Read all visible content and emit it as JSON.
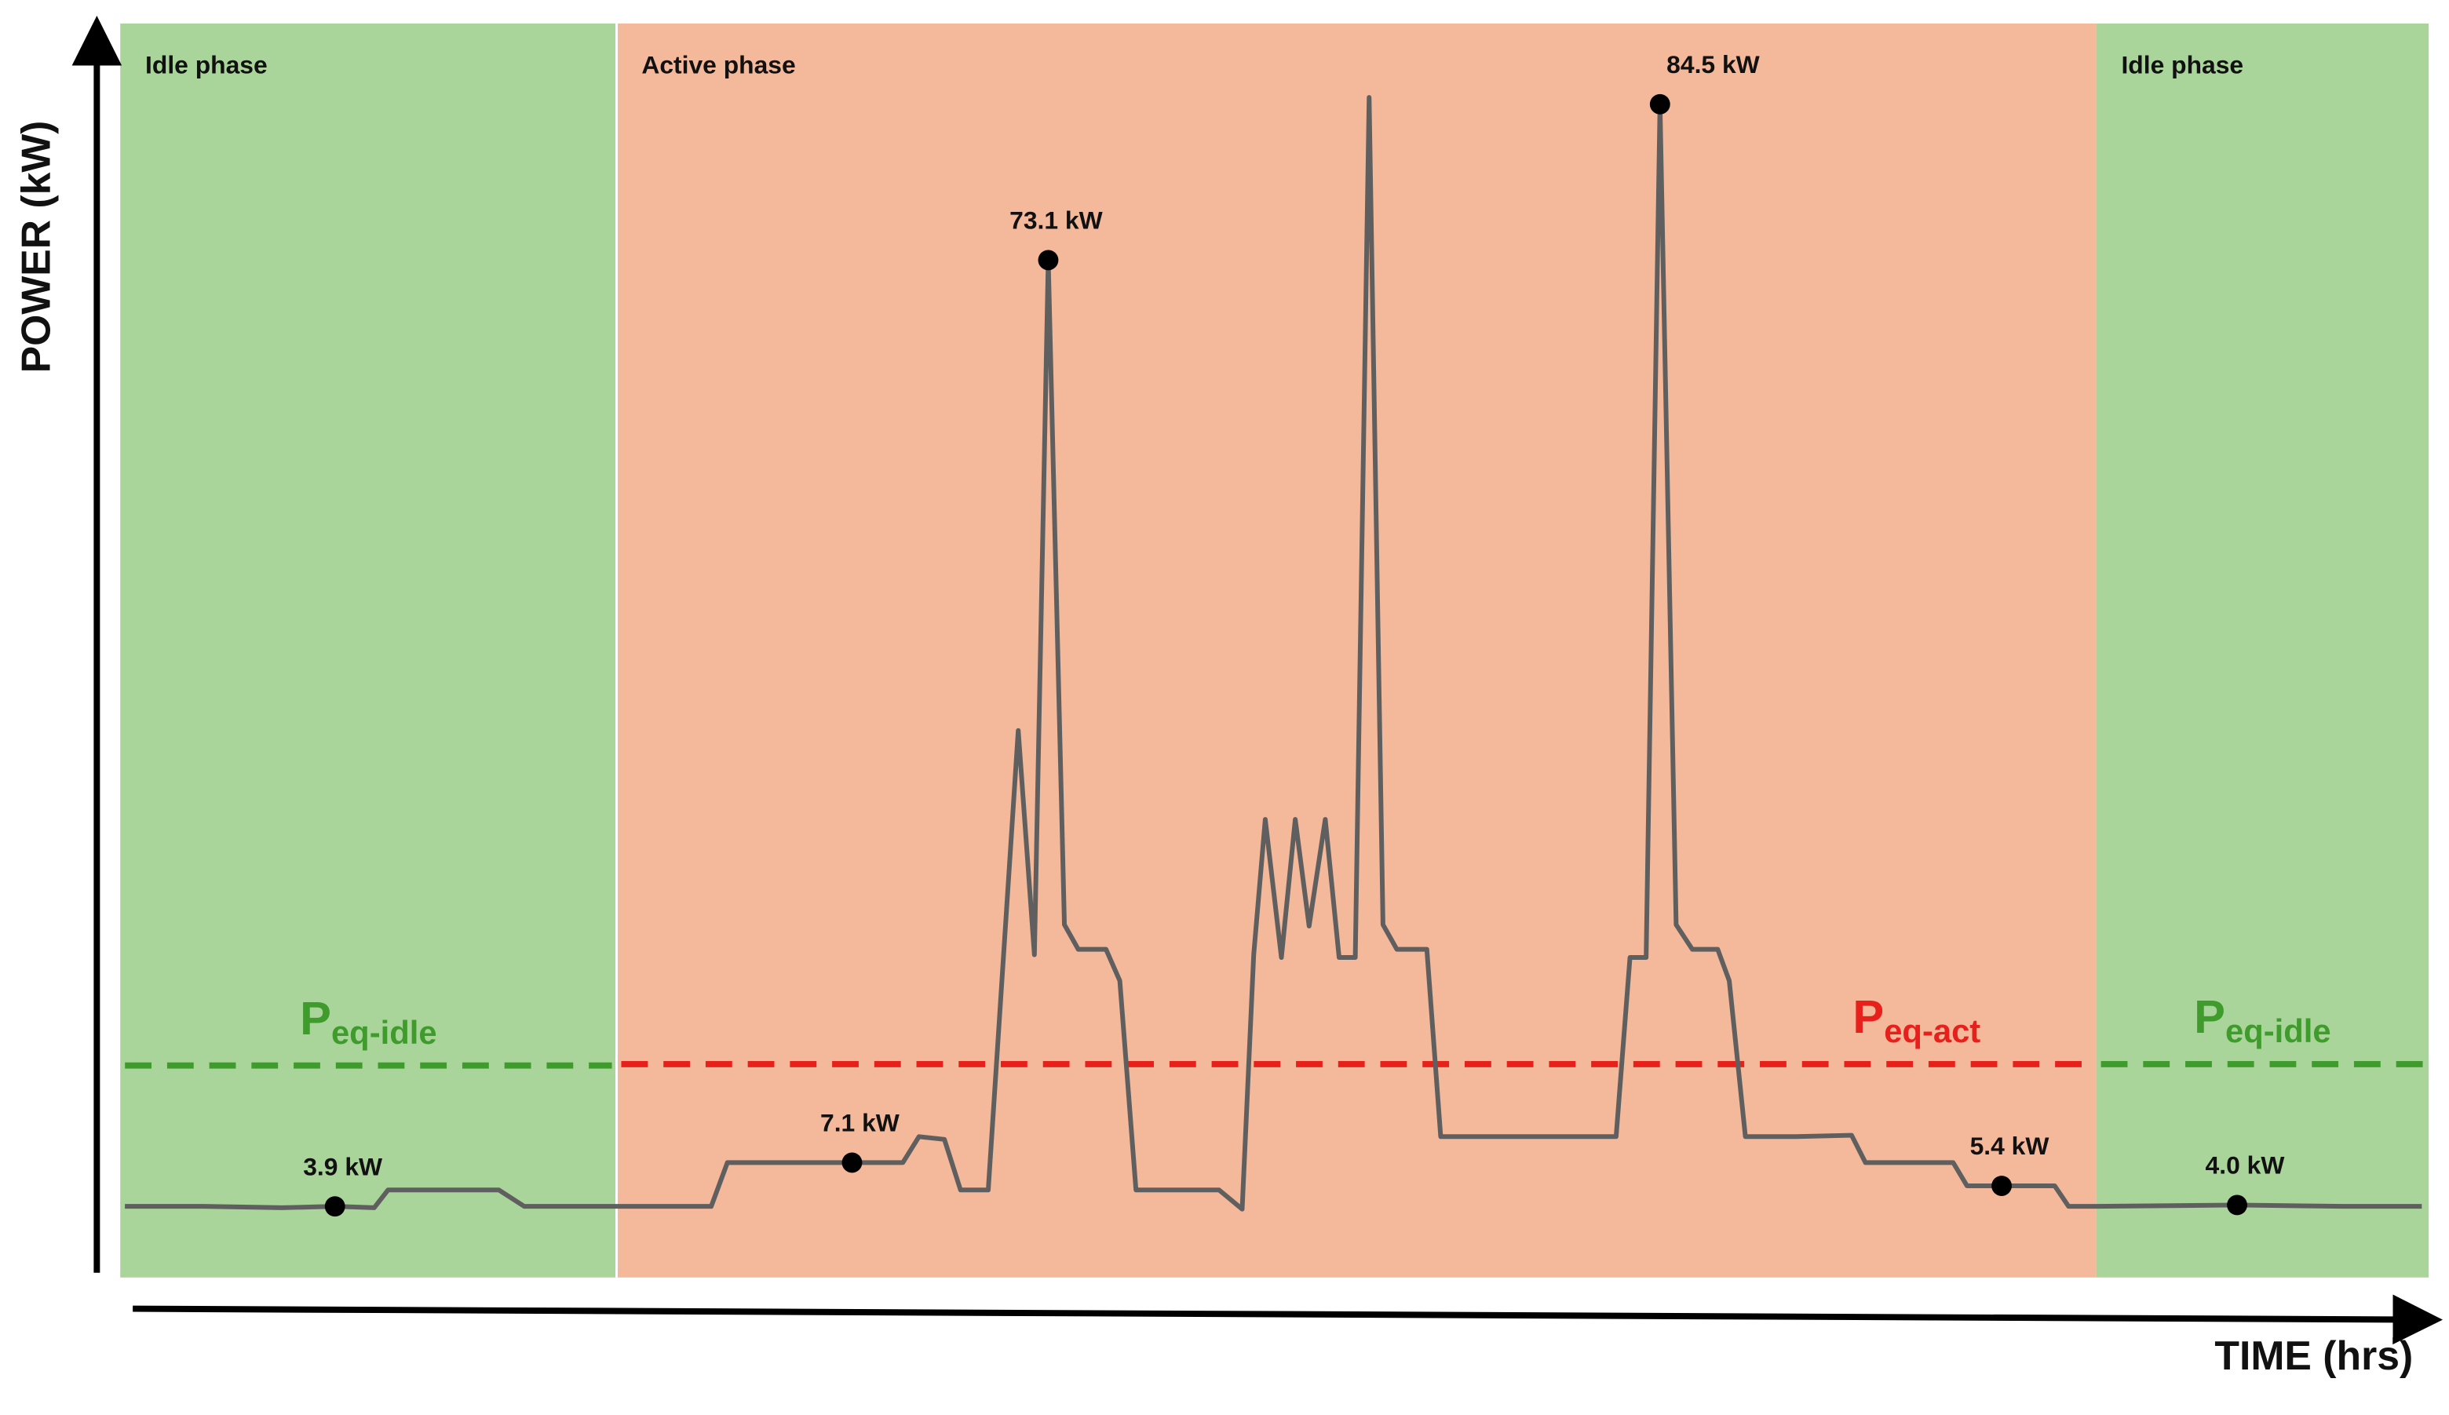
{
  "chart_data": {
    "type": "line",
    "y_label": "POWER (kW)",
    "x_label": "TIME (hrs)",
    "xlim": [
      0,
      100
    ],
    "ylim": [
      -1.3,
      90.4
    ],
    "phases": [
      {
        "label": "Idle phase",
        "start": 0,
        "end": 21.5,
        "color": "#a9d49a"
      },
      {
        "label": "Active phase",
        "start": 21.5,
        "end": 85.6,
        "color": "#f4b89a"
      },
      {
        "label": "Idle phase",
        "start": 85.6,
        "end": 100,
        "color": "#a9d49a"
      }
    ],
    "reference_lines": [
      {
        "label": "P",
        "subscript": "eq-idle",
        "value": 14.2,
        "x_range": [
          0,
          21.5
        ],
        "color": "#3f9b2c"
      },
      {
        "label": "P",
        "subscript": "eq-act",
        "value": 14.3,
        "x_range": [
          21.5,
          85.6
        ],
        "color": "#e8201c"
      },
      {
        "label": "P",
        "subscript": "eq-idle",
        "value": 14.3,
        "x_range": [
          85.6,
          100
        ],
        "color": "#3f9b2c"
      }
    ],
    "series": [
      {
        "name": "Power",
        "color": "#5f5f5f",
        "x": [
          0.2,
          3.6,
          7.0,
          9.3,
          11.0,
          11.6,
          16.4,
          17.5,
          21.5,
          25.6,
          26.3,
          31.7,
          33.9,
          34.6,
          35.7,
          36.4,
          37.6,
          38.9,
          39.6,
          40.2,
          40.9,
          41.5,
          42.7,
          43.3,
          44.0,
          47.6,
          48.6,
          49.1,
          49.6,
          50.3,
          50.9,
          51.5,
          52.2,
          52.8,
          53.5,
          54.1,
          54.7,
          55.3,
          56.6,
          57.2,
          64.8,
          65.4,
          66.1,
          66.7,
          67.4,
          68.1,
          69.2,
          69.7,
          70.4,
          72.6,
          75.0,
          75.6,
          79.4,
          80.0,
          81.5,
          83.8,
          84.4,
          85.6,
          91.7,
          96.3,
          99.7
        ],
        "values": [
          3.9,
          3.9,
          3.8,
          3.9,
          3.8,
          5.1,
          5.1,
          3.9,
          3.9,
          3.9,
          7.1,
          7.1,
          7.1,
          9.0,
          8.8,
          5.1,
          5.1,
          38.7,
          22.3,
          73.1,
          24.5,
          22.7,
          22.7,
          20.4,
          5.1,
          5.1,
          3.7,
          22.3,
          32.2,
          22.1,
          32.2,
          24.4,
          32.2,
          22.1,
          22.1,
          85.0,
          24.5,
          22.7,
          22.7,
          9.0,
          9.0,
          22.1,
          22.1,
          84.5,
          24.5,
          22.7,
          22.7,
          20.4,
          9.0,
          9.0,
          9.1,
          7.1,
          7.1,
          5.4,
          5.4,
          5.4,
          3.9,
          3.9,
          4.0,
          3.9,
          3.9
        ]
      }
    ],
    "annotations": [
      {
        "x": 9.3,
        "y": 3.9,
        "label": "3.9 kW"
      },
      {
        "x": 31.7,
        "y": 7.1,
        "label": "7.1 kW"
      },
      {
        "x": 40.2,
        "y": 73.1,
        "label": "73.1 kW"
      },
      {
        "x": 66.7,
        "y": 84.5,
        "label": "84.5 kW"
      },
      {
        "x": 81.5,
        "y": 5.4,
        "label": "5.4 kW"
      },
      {
        "x": 91.7,
        "y": 4.0,
        "label": "4.0 kW"
      }
    ]
  }
}
